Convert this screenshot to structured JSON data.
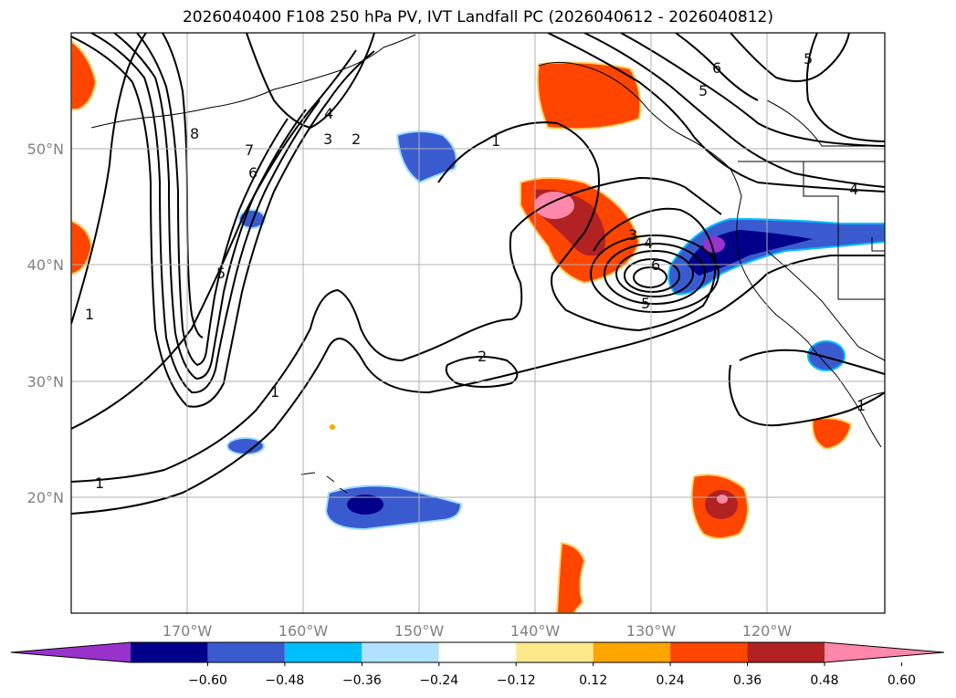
{
  "title": "2026040400 F108 250 hPa PV, IVT Landfall PC (2026040612 - 2026040812)",
  "lat_labels": [
    "50°N",
    "40°N",
    "30°N",
    "20°N"
  ],
  "lon_labels": [
    "170°W",
    "160°W",
    "150°W",
    "140°W",
    "130°W",
    "120°W"
  ],
  "contour_labels": [
    "1",
    "1",
    "1",
    "1",
    "2",
    "2",
    "3",
    "3",
    "4",
    "4",
    "4",
    "5",
    "5",
    "5",
    "5",
    "6",
    "6",
    "6",
    "7",
    "8",
    "1"
  ],
  "colorbar": {
    "ticks": [
      "−0.60",
      "−0.48",
      "−0.36",
      "−0.24",
      "−0.12",
      "0.12",
      "0.24",
      "0.36",
      "0.48",
      "0.60"
    ],
    "colors": [
      "#9932cc",
      "#00008b",
      "#3a5bd0",
      "#00bfff",
      "#b0e2ff",
      "#ffffff",
      "#ffe88c",
      "#ffa500",
      "#ff4500",
      "#b22222",
      "#ff88aa"
    ]
  }
}
